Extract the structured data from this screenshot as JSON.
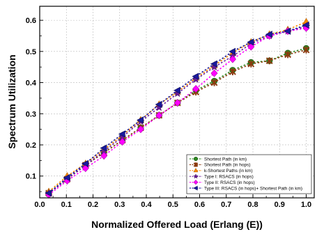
{
  "chart_data": {
    "type": "scatter",
    "xlabel": "Normalized Offered Load (Erlang (E))",
    "ylabel": "Spectrum Utilization",
    "xlim": [
      0.0,
      1.03
    ],
    "ylim": [
      0.03,
      0.645
    ],
    "xticks": [
      "0.0",
      "0.1",
      "0.2",
      "0.3",
      "0.4",
      "0.5",
      "0.6",
      "0.7",
      "0.8",
      "0.9",
      "1.0"
    ],
    "yticks": [
      "0.1",
      "0.2",
      "0.3",
      "0.4",
      "0.5",
      "0.6"
    ],
    "grid": true,
    "legend_position": "bottom-right",
    "x": [
      0.034,
      0.103,
      0.172,
      0.241,
      0.31,
      0.379,
      0.448,
      0.517,
      0.586,
      0.655,
      0.724,
      0.793,
      0.862,
      0.931,
      1.0
    ],
    "series": [
      {
        "name": "Shortest Path (in km)",
        "color": "#2e8b22",
        "marker": "circle",
        "values": [
          0.045,
          0.09,
          0.135,
          0.175,
          0.215,
          0.255,
          0.295,
          0.335,
          0.375,
          0.405,
          0.44,
          0.465,
          0.47,
          0.495,
          0.51
        ]
      },
      {
        "name": "Shortest Path (in hops)",
        "color": "#8b3a0f",
        "marker": "x",
        "values": [
          0.045,
          0.09,
          0.135,
          0.175,
          0.215,
          0.255,
          0.295,
          0.335,
          0.37,
          0.4,
          0.435,
          0.46,
          0.47,
          0.49,
          0.505
        ]
      },
      {
        "name": "k-Shortest Paths (in km)",
        "color": "#ff8c00",
        "marker": "triangle-up",
        "values": [
          0.05,
          0.1,
          0.14,
          0.185,
          0.23,
          0.28,
          0.33,
          0.37,
          0.415,
          0.455,
          0.495,
          0.53,
          0.555,
          0.57,
          0.595
        ]
      },
      {
        "name": "Type I: RSACS (in hops)",
        "color": "#6a1b9a",
        "marker": "star",
        "values": [
          0.045,
          0.09,
          0.135,
          0.18,
          0.225,
          0.275,
          0.32,
          0.365,
          0.41,
          0.45,
          0.485,
          0.525,
          0.55,
          0.565,
          0.58
        ]
      },
      {
        "name": "Type II: RSACS (in hops)",
        "color": "#ff00ff",
        "marker": "diamond",
        "values": [
          0.04,
          0.085,
          0.125,
          0.165,
          0.21,
          0.25,
          0.295,
          0.335,
          0.38,
          0.43,
          0.475,
          0.515,
          0.55,
          0.565,
          0.575
        ]
      },
      {
        "name": "Type III: RSACS (in hops)+ Shortest Path (in km)",
        "color": "#1a1a9c",
        "marker": "triangle-left",
        "values": [
          0.045,
          0.095,
          0.14,
          0.19,
          0.235,
          0.28,
          0.33,
          0.375,
          0.42,
          0.46,
          0.5,
          0.53,
          0.555,
          0.565,
          0.585
        ]
      }
    ]
  }
}
